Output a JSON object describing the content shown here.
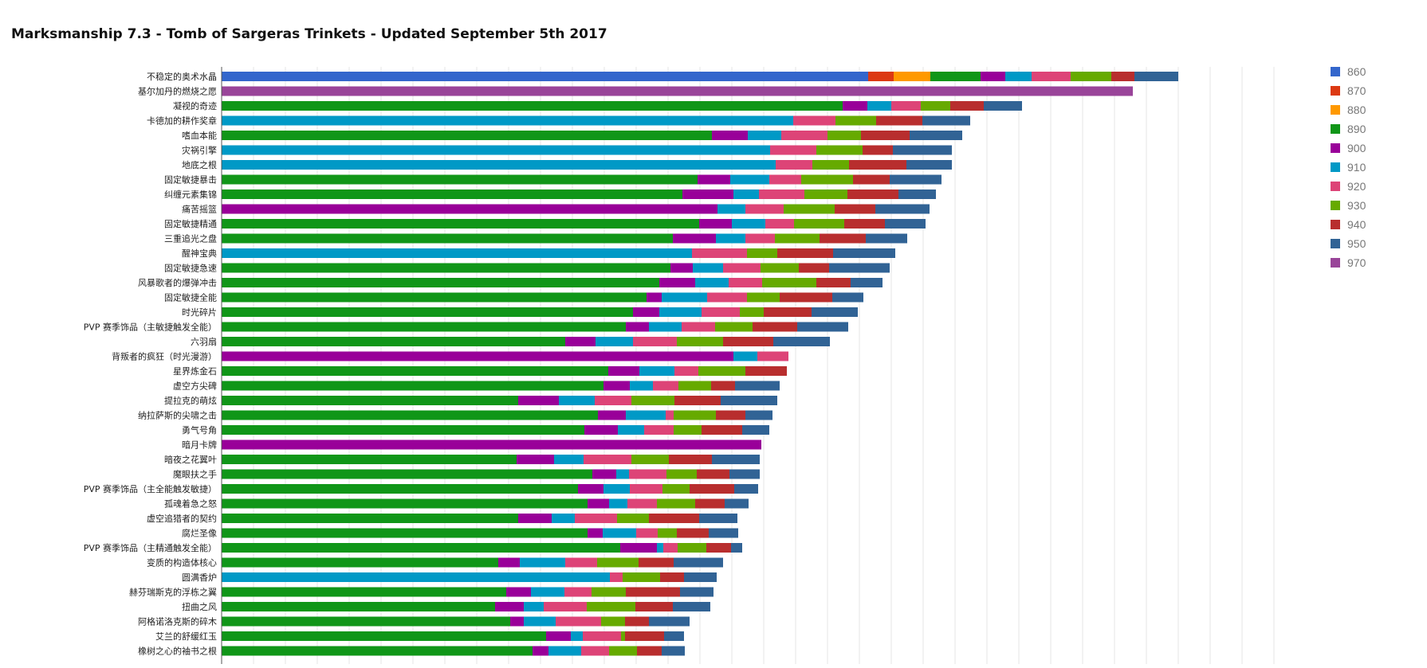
{
  "chart_data": {
    "type": "bar",
    "orientation": "horizontal",
    "stacked": true,
    "title": "Marksmanship 7.3 - Tomb of Sargeras Trinkets - Updated September 5th 2017",
    "xlabel": "",
    "ylabel": "",
    "xlim": [
      0,
      1320
    ],
    "grid": true,
    "legend_position": "right",
    "series": [
      {
        "name": "860",
        "color": "#3366cc"
      },
      {
        "name": "870",
        "color": "#dc3912"
      },
      {
        "name": "880",
        "color": "#ff9900"
      },
      {
        "name": "890",
        "color": "#109618"
      },
      {
        "name": "900",
        "color": "#990099"
      },
      {
        "name": "910",
        "color": "#0099c6"
      },
      {
        "name": "920",
        "color": "#dd4477"
      },
      {
        "name": "930",
        "color": "#66aa00"
      },
      {
        "name": "940",
        "color": "#b82e2e"
      },
      {
        "name": "950",
        "color": "#316395"
      },
      {
        "name": "970",
        "color": "#994499"
      }
    ],
    "rows": [
      {
        "label": "不稳定的奥术水晶",
        "segments": [
          [
            "860",
            811
          ],
          [
            "870",
            32
          ],
          [
            "880",
            46
          ],
          [
            "890",
            63
          ],
          [
            "900",
            31
          ],
          [
            "910",
            33
          ],
          [
            "920",
            49
          ],
          [
            "930",
            51
          ],
          [
            "940",
            29
          ],
          [
            "950",
            55
          ]
        ]
      },
      {
        "label": "基尔加丹的燃烧之愿",
        "segments": [
          [
            "970",
            1143
          ]
        ]
      },
      {
        "label": "凝视的奇迹",
        "segments": [
          [
            "890",
            779
          ],
          [
            "900",
            31
          ],
          [
            "910",
            30
          ],
          [
            "920",
            37
          ],
          [
            "930",
            37
          ],
          [
            "940",
            42
          ],
          [
            "950",
            48
          ]
        ]
      },
      {
        "label": "卡德加的耕作奖章",
        "segments": [
          [
            "910",
            717
          ],
          [
            "920",
            53
          ],
          [
            "930",
            51
          ],
          [
            "940",
            58
          ],
          [
            "950",
            60
          ]
        ]
      },
      {
        "label": "嗜血本能",
        "segments": [
          [
            "890",
            615
          ],
          [
            "900",
            45
          ],
          [
            "910",
            42
          ],
          [
            "920",
            58
          ],
          [
            "930",
            42
          ],
          [
            "940",
            61
          ],
          [
            "950",
            66
          ]
        ]
      },
      {
        "label": "灾祸引擎",
        "segments": [
          [
            "910",
            688
          ],
          [
            "920",
            58
          ],
          [
            "930",
            58
          ],
          [
            "940",
            38
          ],
          [
            "950",
            74
          ]
        ]
      },
      {
        "label": "地底之根",
        "segments": [
          [
            "910",
            695
          ],
          [
            "920",
            46
          ],
          [
            "930",
            46
          ],
          [
            "940",
            72
          ],
          [
            "950",
            57
          ]
        ]
      },
      {
        "label": "固定敏捷暴击",
        "segments": [
          [
            "890",
            597
          ],
          [
            "900",
            41
          ],
          [
            "910",
            49
          ],
          [
            "920",
            40
          ],
          [
            "930",
            65
          ],
          [
            "940",
            46
          ],
          [
            "950",
            65
          ]
        ]
      },
      {
        "label": "纠缠元素集锦",
        "segments": [
          [
            "890",
            578
          ],
          [
            "900",
            64
          ],
          [
            "910",
            32
          ],
          [
            "920",
            57
          ],
          [
            "930",
            54
          ],
          [
            "940",
            64
          ],
          [
            "950",
            47
          ]
        ]
      },
      {
        "label": "痛苦摇篮",
        "segments": [
          [
            "900",
            622
          ],
          [
            "910",
            35
          ],
          [
            "920",
            48
          ],
          [
            "930",
            64
          ],
          [
            "940",
            51
          ],
          [
            "950",
            68
          ]
        ]
      },
      {
        "label": "固定敏捷精通",
        "segments": [
          [
            "890",
            599
          ],
          [
            "900",
            41
          ],
          [
            "910",
            42
          ],
          [
            "920",
            36
          ],
          [
            "930",
            63
          ],
          [
            "940",
            51
          ],
          [
            "950",
            51
          ]
        ]
      },
      {
        "label": "三重追光之盘",
        "segments": [
          [
            "890",
            566
          ],
          [
            "900",
            54
          ],
          [
            "910",
            37
          ],
          [
            "920",
            37
          ],
          [
            "930",
            56
          ],
          [
            "940",
            58
          ],
          [
            "950",
            52
          ]
        ]
      },
      {
        "label": "醒神宝典",
        "segments": [
          [
            "910",
            590
          ],
          [
            "920",
            69
          ],
          [
            "930",
            38
          ],
          [
            "940",
            70
          ],
          [
            "950",
            78
          ]
        ]
      },
      {
        "label": "固定敏捷急速",
        "segments": [
          [
            "890",
            563
          ],
          [
            "900",
            28
          ],
          [
            "910",
            38
          ],
          [
            "920",
            47
          ],
          [
            "930",
            48
          ],
          [
            "940",
            38
          ],
          [
            "950",
            76
          ]
        ]
      },
      {
        "label": "风暴歌者的爆弹冲击",
        "segments": [
          [
            "890",
            549
          ],
          [
            "900",
            45
          ],
          [
            "910",
            42
          ],
          [
            "920",
            42
          ],
          [
            "930",
            68
          ],
          [
            "940",
            43
          ],
          [
            "950",
            40
          ]
        ]
      },
      {
        "label": "固定敏捷全能",
        "segments": [
          [
            "890",
            533
          ],
          [
            "900",
            19
          ],
          [
            "910",
            57
          ],
          [
            "920",
            50
          ],
          [
            "930",
            41
          ],
          [
            "940",
            66
          ],
          [
            "950",
            39
          ]
        ]
      },
      {
        "label": "时光碎片",
        "segments": [
          [
            "890",
            516
          ],
          [
            "900",
            33
          ],
          [
            "910",
            53
          ],
          [
            "920",
            48
          ],
          [
            "930",
            30
          ],
          [
            "940",
            60
          ],
          [
            "950",
            58
          ]
        ]
      },
      {
        "label": "PVP 赛季饰品（主敏捷触发全能）",
        "segments": [
          [
            "890",
            507
          ],
          [
            "900",
            29
          ],
          [
            "910",
            41
          ],
          [
            "920",
            42
          ],
          [
            "930",
            47
          ],
          [
            "940",
            56
          ],
          [
            "950",
            64
          ]
        ]
      },
      {
        "label": "六羽扇",
        "segments": [
          [
            "890",
            431
          ],
          [
            "900",
            38
          ],
          [
            "910",
            47
          ],
          [
            "920",
            55
          ],
          [
            "930",
            58
          ],
          [
            "940",
            63
          ],
          [
            "950",
            71
          ]
        ]
      },
      {
        "label": "背叛者的疯狂（时光漫游）",
        "segments": [
          [
            "900",
            642
          ],
          [
            "910",
            30
          ],
          [
            "920",
            39
          ]
        ]
      },
      {
        "label": "星界炼金石",
        "segments": [
          [
            "890",
            485
          ],
          [
            "900",
            39
          ],
          [
            "910",
            44
          ],
          [
            "920",
            30
          ],
          [
            "930",
            59
          ],
          [
            "940",
            52
          ]
        ]
      },
      {
        "label": "虚空方尖碑",
        "segments": [
          [
            "890",
            479
          ],
          [
            "900",
            33
          ],
          [
            "910",
            29
          ],
          [
            "920",
            32
          ],
          [
            "930",
            41
          ],
          [
            "940",
            30
          ],
          [
            "950",
            56
          ]
        ]
      },
      {
        "label": "提拉克的萌炫",
        "segments": [
          [
            "890",
            372
          ],
          [
            "900",
            51
          ],
          [
            "910",
            45
          ],
          [
            "920",
            46
          ],
          [
            "930",
            54
          ],
          [
            "940",
            58
          ],
          [
            "950",
            71
          ]
        ]
      },
      {
        "label": "纳拉萨斯的尖啸之击",
        "segments": [
          [
            "890",
            472
          ],
          [
            "900",
            35
          ],
          [
            "910",
            50
          ],
          [
            "920",
            10
          ],
          [
            "930",
            53
          ],
          [
            "940",
            37
          ],
          [
            "950",
            34
          ]
        ]
      },
      {
        "label": "勇气号角",
        "segments": [
          [
            "890",
            455
          ],
          [
            "900",
            42
          ],
          [
            "910",
            33
          ],
          [
            "920",
            37
          ],
          [
            "930",
            35
          ],
          [
            "940",
            51
          ],
          [
            "950",
            34
          ]
        ]
      },
      {
        "label": "暗月卡牌",
        "segments": [
          [
            "900",
            677
          ]
        ]
      },
      {
        "label": "暗夜之花翼叶",
        "segments": [
          [
            "890",
            370
          ],
          [
            "900",
            47
          ],
          [
            "910",
            37
          ],
          [
            "920",
            60
          ],
          [
            "930",
            47
          ],
          [
            "940",
            54
          ],
          [
            "950",
            60
          ]
        ]
      },
      {
        "label": "魔眼扶之手",
        "segments": [
          [
            "890",
            465
          ],
          [
            "900",
            30
          ],
          [
            "910",
            16
          ],
          [
            "920",
            47
          ],
          [
            "930",
            38
          ],
          [
            "940",
            41
          ],
          [
            "950",
            38
          ]
        ]
      },
      {
        "label": "PVP 赛季饰品（主全能触发敏捷）",
        "segments": [
          [
            "890",
            447
          ],
          [
            "900",
            32
          ],
          [
            "910",
            33
          ],
          [
            "920",
            41
          ],
          [
            "930",
            34
          ],
          [
            "940",
            56
          ],
          [
            "950",
            30
          ]
        ]
      },
      {
        "label": "孤魂着急之怒",
        "segments": [
          [
            "890",
            459
          ],
          [
            "900",
            27
          ],
          [
            "910",
            23
          ],
          [
            "920",
            37
          ],
          [
            "930",
            48
          ],
          [
            "940",
            37
          ],
          [
            "950",
            30
          ]
        ]
      },
      {
        "label": "虚空追猎者的契约",
        "segments": [
          [
            "890",
            372
          ],
          [
            "900",
            42
          ],
          [
            "910",
            29
          ],
          [
            "920",
            53
          ],
          [
            "930",
            40
          ],
          [
            "940",
            63
          ],
          [
            "950",
            48
          ]
        ]
      },
      {
        "label": "腐烂圣像",
        "segments": [
          [
            "890",
            459
          ],
          [
            "900",
            19
          ],
          [
            "910",
            42
          ],
          [
            "920",
            27
          ],
          [
            "930",
            24
          ],
          [
            "940",
            40
          ],
          [
            "950",
            37
          ]
        ]
      },
      {
        "label": "PVP 赛季饰品（主精通触发全能）",
        "segments": [
          [
            "890",
            500
          ],
          [
            "900",
            46
          ],
          [
            "910",
            8
          ],
          [
            "920",
            18
          ],
          [
            "930",
            36
          ],
          [
            "940",
            31
          ],
          [
            "950",
            14
          ]
        ]
      },
      {
        "label": "变质的构造体核心",
        "segments": [
          [
            "890",
            347
          ],
          [
            "900",
            27
          ],
          [
            "910",
            57
          ],
          [
            "920",
            40
          ],
          [
            "930",
            52
          ],
          [
            "940",
            44
          ],
          [
            "950",
            62
          ]
        ]
      },
      {
        "label": "圆满香炉",
        "segments": [
          [
            "910",
            487
          ],
          [
            "920",
            16
          ],
          [
            "930",
            47
          ],
          [
            "940",
            30
          ],
          [
            "950",
            41
          ]
        ]
      },
      {
        "label": "赫芬瑞斯克的浮栋之翼",
        "segments": [
          [
            "890",
            357
          ],
          [
            "900",
            31
          ],
          [
            "910",
            42
          ],
          [
            "920",
            34
          ],
          [
            "930",
            43
          ],
          [
            "940",
            68
          ],
          [
            "950",
            42
          ]
        ]
      },
      {
        "label": "扭曲之风",
        "segments": [
          [
            "890",
            343
          ],
          [
            "900",
            36
          ],
          [
            "910",
            25
          ],
          [
            "920",
            54
          ],
          [
            "930",
            61
          ],
          [
            "940",
            47
          ],
          [
            "950",
            47
          ]
        ]
      },
      {
        "label": "阿格诺洛克斯的碎木",
        "segments": [
          [
            "890",
            362
          ],
          [
            "900",
            17
          ],
          [
            "910",
            40
          ],
          [
            "920",
            57
          ],
          [
            "930",
            30
          ],
          [
            "940",
            30
          ],
          [
            "950",
            51
          ]
        ]
      },
      {
        "label": "艾兰的舒缓红玉",
        "segments": [
          [
            "890",
            407
          ],
          [
            "900",
            31
          ],
          [
            "910",
            15
          ],
          [
            "920",
            48
          ],
          [
            "930",
            5
          ],
          [
            "940",
            49
          ],
          [
            "950",
            25
          ]
        ]
      },
      {
        "label": "橡树之心的袖书之根",
        "segments": [
          [
            "890",
            390
          ],
          [
            "900",
            20
          ],
          [
            "910",
            41
          ],
          [
            "920",
            35
          ],
          [
            "930",
            35
          ],
          [
            "940",
            31
          ],
          [
            "950",
            29
          ]
        ]
      }
    ]
  }
}
